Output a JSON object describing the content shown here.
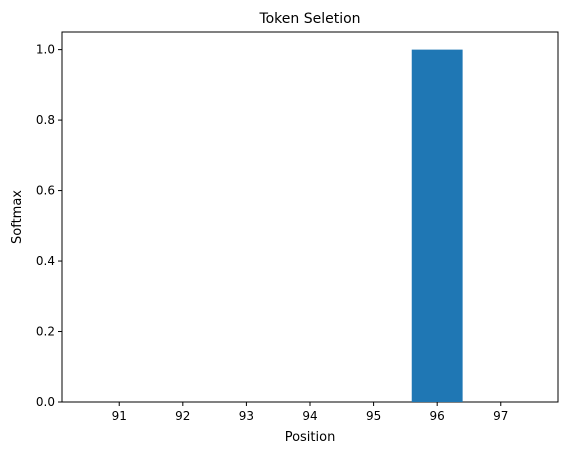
{
  "chart_data": {
    "type": "bar",
    "title": "Token Seletion",
    "xlabel": "Position",
    "ylabel": "Softmax",
    "categories": [
      "91",
      "92",
      "93",
      "94",
      "95",
      "96",
      "97"
    ],
    "values": [
      0,
      0,
      0,
      0,
      0,
      1.0,
      0
    ],
    "ylim": [
      0,
      1.05
    ],
    "yticks": [
      "0.0",
      "0.2",
      "0.4",
      "0.6",
      "0.8",
      "1.0"
    ],
    "bar_color": "#1f77b4",
    "grid": false
  }
}
